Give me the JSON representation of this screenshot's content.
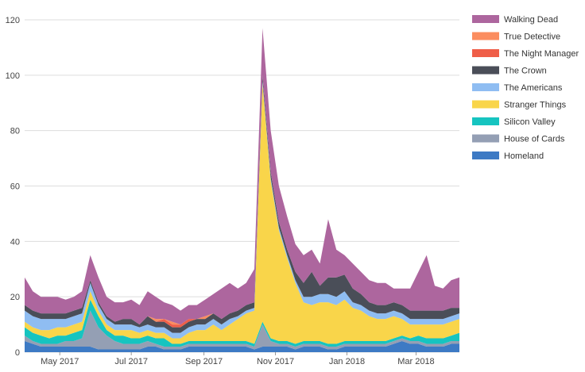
{
  "chart_data": {
    "type": "area",
    "stacked": true,
    "x": [
      "2017-04-01",
      "2017-04-08",
      "2017-04-15",
      "2017-04-22",
      "2017-04-29",
      "2017-05-06",
      "2017-05-13",
      "2017-05-20",
      "2017-05-27",
      "2017-06-03",
      "2017-06-10",
      "2017-06-17",
      "2017-06-24",
      "2017-07-01",
      "2017-07-08",
      "2017-07-15",
      "2017-07-22",
      "2017-07-29",
      "2017-08-05",
      "2017-08-12",
      "2017-08-19",
      "2017-08-26",
      "2017-09-02",
      "2017-09-09",
      "2017-09-16",
      "2017-09-23",
      "2017-09-30",
      "2017-10-07",
      "2017-10-14",
      "2017-10-21",
      "2017-10-28",
      "2017-11-04",
      "2017-11-11",
      "2017-11-18",
      "2017-11-25",
      "2017-12-02",
      "2017-12-09",
      "2017-12-16",
      "2017-12-23",
      "2017-12-30",
      "2018-01-06",
      "2018-01-13",
      "2018-01-20",
      "2018-01-27",
      "2018-02-03",
      "2018-02-10",
      "2018-02-17",
      "2018-02-24",
      "2018-03-03",
      "2018-03-10",
      "2018-03-17",
      "2018-03-24",
      "2018-03-31",
      "2018-04-07"
    ],
    "x_ticks": [
      "May 2017",
      "Jul 2017",
      "Sep 2017",
      "Nov 2017",
      "Jan 2018",
      "Mar 2018"
    ],
    "x_tick_dates": [
      "2017-05-01",
      "2017-07-01",
      "2017-09-01",
      "2017-11-01",
      "2018-01-01",
      "2018-03-01"
    ],
    "ylim": [
      0,
      120
    ],
    "y_ticks": [
      0,
      20,
      40,
      60,
      80,
      100,
      120
    ],
    "grid": true,
    "legend_position": "right",
    "series": [
      {
        "name": "Homeland",
        "color": "#3d7ac4",
        "values": [
          4,
          3,
          2,
          2,
          2,
          2,
          2,
          2,
          2,
          1,
          1,
          1,
          1,
          1,
          1,
          2,
          2,
          1,
          1,
          1,
          2,
          2,
          2,
          2,
          2,
          2,
          2,
          2,
          1,
          2,
          2,
          2,
          2,
          1,
          2,
          2,
          2,
          1,
          1,
          2,
          2,
          2,
          2,
          2,
          2,
          3,
          4,
          3,
          3,
          2,
          2,
          2,
          3,
          3
        ]
      },
      {
        "name": "House of Cards",
        "color": "#949fb4",
        "values": [
          2,
          1,
          1,
          1,
          1,
          2,
          2,
          3,
          13,
          8,
          5,
          3,
          2,
          2,
          2,
          2,
          1,
          1,
          1,
          1,
          1,
          1,
          1,
          1,
          1,
          1,
          1,
          1,
          1,
          8,
          2,
          1,
          1,
          1,
          1,
          1,
          1,
          1,
          1,
          1,
          1,
          1,
          1,
          1,
          1,
          1,
          1,
          1,
          1,
          1,
          1,
          1,
          1,
          1
        ]
      },
      {
        "name": "Silicon Valley",
        "color": "#16c4c0",
        "values": [
          3,
          3,
          3,
          2,
          3,
          2,
          3,
          3,
          4,
          4,
          2,
          2,
          3,
          2,
          2,
          2,
          2,
          3,
          1,
          1,
          1,
          1,
          1,
          1,
          1,
          1,
          1,
          1,
          1,
          1,
          1,
          1,
          1,
          1,
          1,
          1,
          1,
          1,
          1,
          1,
          1,
          1,
          1,
          1,
          1,
          1,
          1,
          1,
          2,
          2,
          2,
          2,
          2,
          3
        ]
      },
      {
        "name": "Stranger Things",
        "color": "#f9d54a",
        "values": [
          2,
          2,
          2,
          3,
          3,
          3,
          3,
          3,
          3,
          2,
          2,
          2,
          2,
          3,
          2,
          2,
          2,
          2,
          2,
          2,
          3,
          4,
          4,
          6,
          4,
          6,
          8,
          10,
          12,
          86,
          57,
          40,
          30,
          22,
          14,
          13,
          14,
          15,
          14,
          15,
          12,
          11,
          9,
          8,
          8,
          8,
          6,
          5,
          4,
          5,
          5,
          5,
          5,
          5
        ]
      },
      {
        "name": "The Americans",
        "color": "#8fbdf2",
        "values": [
          4,
          4,
          4,
          4,
          3,
          3,
          3,
          3,
          3,
          2,
          2,
          2,
          2,
          2,
          2,
          2,
          2,
          2,
          2,
          2,
          2,
          2,
          2,
          2,
          2,
          2,
          1,
          1,
          1,
          1,
          1,
          1,
          1,
          1,
          2,
          3,
          3,
          3,
          3,
          3,
          2,
          2,
          2,
          2,
          2,
          2,
          2,
          2,
          2,
          2,
          2,
          2,
          2,
          2
        ]
      },
      {
        "name": "The Crown",
        "color": "#4a4e58",
        "values": [
          2,
          2,
          2,
          2,
          2,
          2,
          2,
          2,
          1,
          1,
          1,
          1,
          2,
          2,
          1,
          3,
          2,
          2,
          2,
          2,
          2,
          2,
          2,
          2,
          2,
          2,
          2,
          2,
          2,
          2,
          2,
          2,
          2,
          3,
          5,
          9,
          3,
          6,
          7,
          6,
          5,
          4,
          3,
          3,
          3,
          3,
          3,
          3,
          3,
          3,
          3,
          3,
          3,
          2
        ]
      },
      {
        "name": "The Night Manager",
        "color": "#ef5e48",
        "values": [
          0,
          0,
          0,
          0,
          0,
          0,
          0,
          0,
          0,
          0,
          0,
          0,
          0,
          0,
          0,
          0,
          0,
          1,
          1,
          1,
          1,
          0,
          0,
          0,
          0,
          0,
          0,
          0,
          0,
          0,
          0,
          0,
          0,
          0,
          0,
          0,
          0,
          0,
          0,
          0,
          0,
          0,
          0,
          0,
          0,
          0,
          0,
          0,
          0,
          0,
          0,
          0,
          0,
          0
        ]
      },
      {
        "name": "True Detective",
        "color": "#fb8d5f",
        "values": [
          0,
          0,
          0,
          0,
          0,
          0,
          0,
          0,
          0,
          0,
          0,
          0,
          0,
          0,
          0,
          0,
          1,
          0,
          1,
          0,
          0,
          0,
          1,
          0,
          0,
          0,
          0,
          0,
          0,
          0,
          0,
          0,
          0,
          0,
          0,
          0,
          0,
          0,
          0,
          0,
          0,
          0,
          0,
          0,
          0,
          0,
          0,
          0,
          0,
          0,
          0,
          0,
          0,
          0
        ]
      },
      {
        "name": "Walking Dead",
        "color": "#ad669e",
        "values": [
          10,
          7,
          6,
          6,
          6,
          5,
          5,
          6,
          9,
          9,
          7,
          7,
          6,
          7,
          7,
          9,
          8,
          6,
          6,
          5,
          5,
          5,
          6,
          7,
          11,
          11,
          8,
          8,
          12,
          17,
          15,
          13,
          12,
          10,
          10,
          8,
          8,
          21,
          10,
          7,
          9,
          8,
          8,
          8,
          8,
          5,
          6,
          8,
          14,
          20,
          9,
          8,
          10,
          11
        ]
      }
    ]
  }
}
